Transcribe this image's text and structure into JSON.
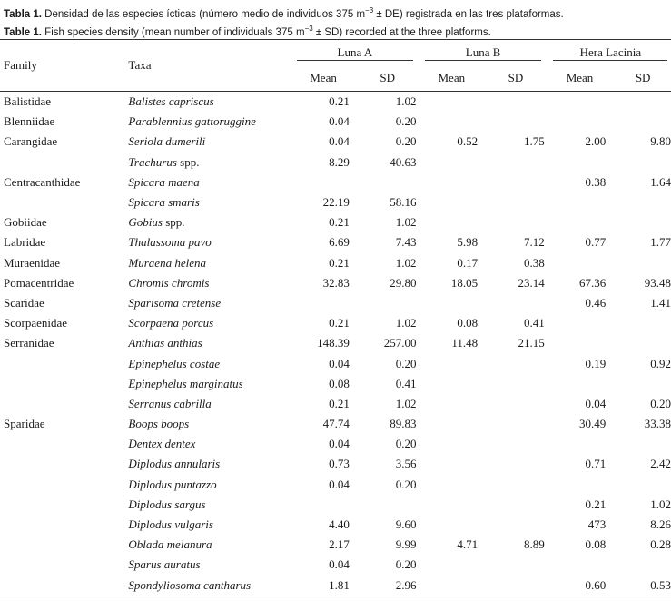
{
  "caption": {
    "es_label": "Tabla 1.",
    "es_text": " Densidad de las especies ícticas (número medio de individuos 375 m",
    "es_sup": "−3",
    "es_tail": " ± DE) registrada en las tres plataformas.",
    "en_label": "Table 1.",
    "en_text": " Fish species density (mean number of individuals 375 m",
    "en_sup": "−3",
    "en_tail": " ± SD) recorded at the three platforms."
  },
  "header": {
    "family": "Family",
    "taxa": "Taxa",
    "groups": [
      "Luna A",
      "Luna B",
      "Hera Lacinia"
    ],
    "mean": "Mean",
    "sd": "SD"
  },
  "rows": [
    {
      "family": "Balistidae",
      "taxa": "Balistes capriscus",
      "la_mean": "0.21",
      "la_sd": "1.02",
      "lb_mean": "",
      "lb_sd": "",
      "hl_mean": "",
      "hl_sd": ""
    },
    {
      "family": "Blenniidae",
      "taxa": "Parablennius gattoruggine",
      "la_mean": "0.04",
      "la_sd": "0.20",
      "lb_mean": "",
      "lb_sd": "",
      "hl_mean": "",
      "hl_sd": ""
    },
    {
      "family": "Carangidae",
      "taxa": "Seriola dumerili",
      "la_mean": "0.04",
      "la_sd": "0.20",
      "lb_mean": "0.52",
      "lb_sd": "1.75",
      "hl_mean": "2.00",
      "hl_sd": "9.80"
    },
    {
      "family": "",
      "taxa": "Trachurus",
      "taxa_suffix": " spp.",
      "la_mean": "8.29",
      "la_sd": "40.63",
      "lb_mean": "",
      "lb_sd": "",
      "hl_mean": "",
      "hl_sd": ""
    },
    {
      "family": "Centracanthidae",
      "taxa": "Spicara maena",
      "la_mean": "",
      "la_sd": "",
      "lb_mean": "",
      "lb_sd": "",
      "hl_mean": "0.38",
      "hl_sd": "1.64"
    },
    {
      "family": "",
      "taxa": "Spicara smaris",
      "la_mean": "22.19",
      "la_sd": "58.16",
      "lb_mean": "",
      "lb_sd": "",
      "hl_mean": "",
      "hl_sd": ""
    },
    {
      "family": "Gobiidae",
      "taxa": "Gobius",
      "taxa_suffix": " spp.",
      "la_mean": "0.21",
      "la_sd": "1.02",
      "lb_mean": "",
      "lb_sd": "",
      "hl_mean": "",
      "hl_sd": ""
    },
    {
      "family": "Labridae",
      "taxa": "Thalassoma pavo",
      "la_mean": "6.69",
      "la_sd": "7.43",
      "lb_mean": "5.98",
      "lb_sd": "7.12",
      "hl_mean": "0.77",
      "hl_sd": "1.77"
    },
    {
      "family": "Muraenidae",
      "taxa": "Muraena helena",
      "la_mean": "0.21",
      "la_sd": "1.02",
      "lb_mean": "0.17",
      "lb_sd": "0.38",
      "hl_mean": "",
      "hl_sd": ""
    },
    {
      "family": "Pomacentridae",
      "taxa": "Chromis chromis",
      "la_mean": "32.83",
      "la_sd": "29.80",
      "lb_mean": "18.05",
      "lb_sd": "23.14",
      "hl_mean": "67.36",
      "hl_sd": "93.48"
    },
    {
      "family": "Scaridae",
      "taxa": "Sparisoma cretense",
      "la_mean": "",
      "la_sd": "",
      "lb_mean": "",
      "lb_sd": "",
      "hl_mean": "0.46",
      "hl_sd": "1.41"
    },
    {
      "family": "Scorpaenidae",
      "taxa": "Scorpaena porcus",
      "la_mean": "0.21",
      "la_sd": "1.02",
      "lb_mean": "0.08",
      "lb_sd": "0.41",
      "hl_mean": "",
      "hl_sd": ""
    },
    {
      "family": "Serranidae",
      "taxa": "Anthias anthias",
      "la_mean": "148.39",
      "la_sd": "257.00",
      "lb_mean": "11.48",
      "lb_sd": "21.15",
      "hl_mean": "",
      "hl_sd": ""
    },
    {
      "family": "",
      "taxa": "Epinephelus costae",
      "la_mean": "0.04",
      "la_sd": "0.20",
      "lb_mean": "",
      "lb_sd": "",
      "hl_mean": "0.19",
      "hl_sd": "0.92"
    },
    {
      "family": "",
      "taxa": "Epinephelus marginatus",
      "la_mean": "0.08",
      "la_sd": "0.41",
      "lb_mean": "",
      "lb_sd": "",
      "hl_mean": "",
      "hl_sd": ""
    },
    {
      "family": "",
      "taxa": "Serranus cabrilla",
      "la_mean": "0.21",
      "la_sd": "1.02",
      "lb_mean": "",
      "lb_sd": "",
      "hl_mean": "0.04",
      "hl_sd": "0.20"
    },
    {
      "family": "Sparidae",
      "taxa": "Boops boops",
      "la_mean": "47.74",
      "la_sd": "89.83",
      "lb_mean": "",
      "lb_sd": "",
      "hl_mean": "30.49",
      "hl_sd": "33.38"
    },
    {
      "family": "",
      "taxa": "Dentex dentex",
      "la_mean": "0.04",
      "la_sd": "0.20",
      "lb_mean": "",
      "lb_sd": "",
      "hl_mean": "",
      "hl_sd": ""
    },
    {
      "family": "",
      "taxa": "Diplodus annularis",
      "la_mean": "0.73",
      "la_sd": "3.56",
      "lb_mean": "",
      "lb_sd": "",
      "hl_mean": "0.71",
      "hl_sd": "2.42"
    },
    {
      "family": "",
      "taxa": "Diplodus puntazzo",
      "la_mean": "0.04",
      "la_sd": "0.20",
      "lb_mean": "",
      "lb_sd": "",
      "hl_mean": "",
      "hl_sd": ""
    },
    {
      "family": "",
      "taxa": "Diplodus sargus",
      "la_mean": "",
      "la_sd": "",
      "lb_mean": "",
      "lb_sd": "",
      "hl_mean": "0.21",
      "hl_sd": "1.02"
    },
    {
      "family": "",
      "taxa": "Diplodus vulgaris",
      "la_mean": "4.40",
      "la_sd": "9.60",
      "lb_mean": "",
      "lb_sd": "",
      "hl_mean": "473",
      "hl_sd": "8.26"
    },
    {
      "family": "",
      "taxa": "Oblada melanura",
      "la_mean": "2.17",
      "la_sd": "9.99",
      "lb_mean": "4.71",
      "lb_sd": "8.89",
      "hl_mean": "0.08",
      "hl_sd": "0.28"
    },
    {
      "family": "",
      "taxa": "Sparus auratus",
      "la_mean": "0.04",
      "la_sd": "0.20",
      "lb_mean": "",
      "lb_sd": "",
      "hl_mean": "",
      "hl_sd": ""
    },
    {
      "family": "",
      "taxa": "Spondyliosoma cantharus",
      "la_mean": "1.81",
      "la_sd": "2.96",
      "lb_mean": "",
      "lb_sd": "",
      "hl_mean": "0.60",
      "hl_sd": "0.53"
    }
  ]
}
